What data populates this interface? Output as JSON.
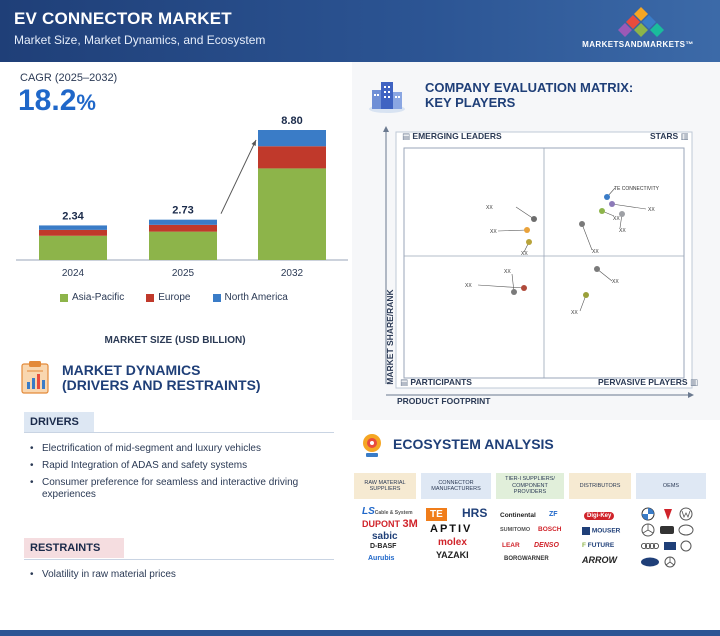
{
  "header": {
    "title": "EV CONNECTOR MARKET",
    "subtitle": "Market Size, Market Dynamics, and Ecosystem",
    "logo_text": "MARKETSANDMARKETS™"
  },
  "cagr": {
    "label": "CAGR (2025–2032)",
    "value": "18.2",
    "unit": "%"
  },
  "chart_data": {
    "type": "bar",
    "stacked": true,
    "title": "",
    "xlabel": "MARKET SIZE (USD BILLION)",
    "ylabel": "",
    "categories": [
      "2024",
      "2025",
      "2032"
    ],
    "totals": [
      "2.34",
      "2.73",
      "8.80"
    ],
    "series": [
      {
        "name": "Asia-Pacific",
        "color": "#8db44a",
        "values": [
          1.64,
          1.92,
          6.2
        ]
      },
      {
        "name": "Europe",
        "color": "#c0392b",
        "values": [
          0.4,
          0.46,
          1.5
        ]
      },
      {
        "name": "North America",
        "color": "#3a7cc7",
        "values": [
          0.3,
          0.35,
          1.1
        ]
      }
    ],
    "ylim": [
      0,
      8.8
    ],
    "legend_position": "bottom",
    "grid": false
  },
  "dynamics": {
    "title_line1": "MARKET DYNAMICS",
    "title_line2": "(DRIVERS AND RESTRAINTS)",
    "drivers_label": "DRIVERS",
    "drivers": [
      "Electrification of mid-segment and luxury vehicles",
      "Rapid Integration of ADAS and safety systems",
      "Consumer preference for seamless and interactive driving experiences"
    ],
    "restraints_label": "RESTRAINTS",
    "restraints": [
      "Volatility in raw material prices"
    ]
  },
  "matrix": {
    "title_line1": "COMPANY EVALUATION MATRIX:",
    "title_line2": "KEY PLAYERS",
    "q_tl": "EMERGING LEADERS",
    "q_tr": "STARS",
    "q_bl": "PARTICIPANTS",
    "q_br": "PERVASIVE PLAYERS",
    "y_axis": "MARKET SHARE/RANK",
    "x_axis": "PRODUCT FOOTPRINT",
    "highlight_label": "TE CONNECTIVITY",
    "point_label": "XX"
  },
  "ecosystem": {
    "title": "ECOSYSTEM ANALYSIS",
    "columns": [
      {
        "label": "RAW MATERIAL SUPPLIERS",
        "color": "#f6ead2"
      },
      {
        "label": "CONNECTOR MANUFACTURERS",
        "color": "#dfe8f4"
      },
      {
        "label": "TIER-I SUPPLIERS/ COMPONENT PROVIDERS",
        "color": "#e1efda"
      },
      {
        "label": "DISTRIBUTORS",
        "color": "#f6ead2"
      },
      {
        "label": "OEMS",
        "color": "#dfe8f4"
      }
    ],
    "brands": {
      "ls": "LS",
      "ls_small": "Cable & System",
      "dupont": "DUPONT",
      "threem": "3M",
      "sabic": "sabic",
      "basf": "D-BASF",
      "aurubis": "Aurubis",
      "te": "TE",
      "hrs": "HRS",
      "aptiv": "APTIV",
      "molex": "molex",
      "yazaki": "YAZAKI",
      "continental": "Continental",
      "zf": "ZF",
      "sumitomo": "SUMITOMO",
      "bosch": "BOSCH",
      "lear": "LEAR",
      "denso": "DENSO",
      "borgwarner": "BORGWARNER",
      "keyence": "Digi-Key",
      "mouser": "MOUSER",
      "future": "FUTURE",
      "arrow": "ARROW"
    }
  }
}
